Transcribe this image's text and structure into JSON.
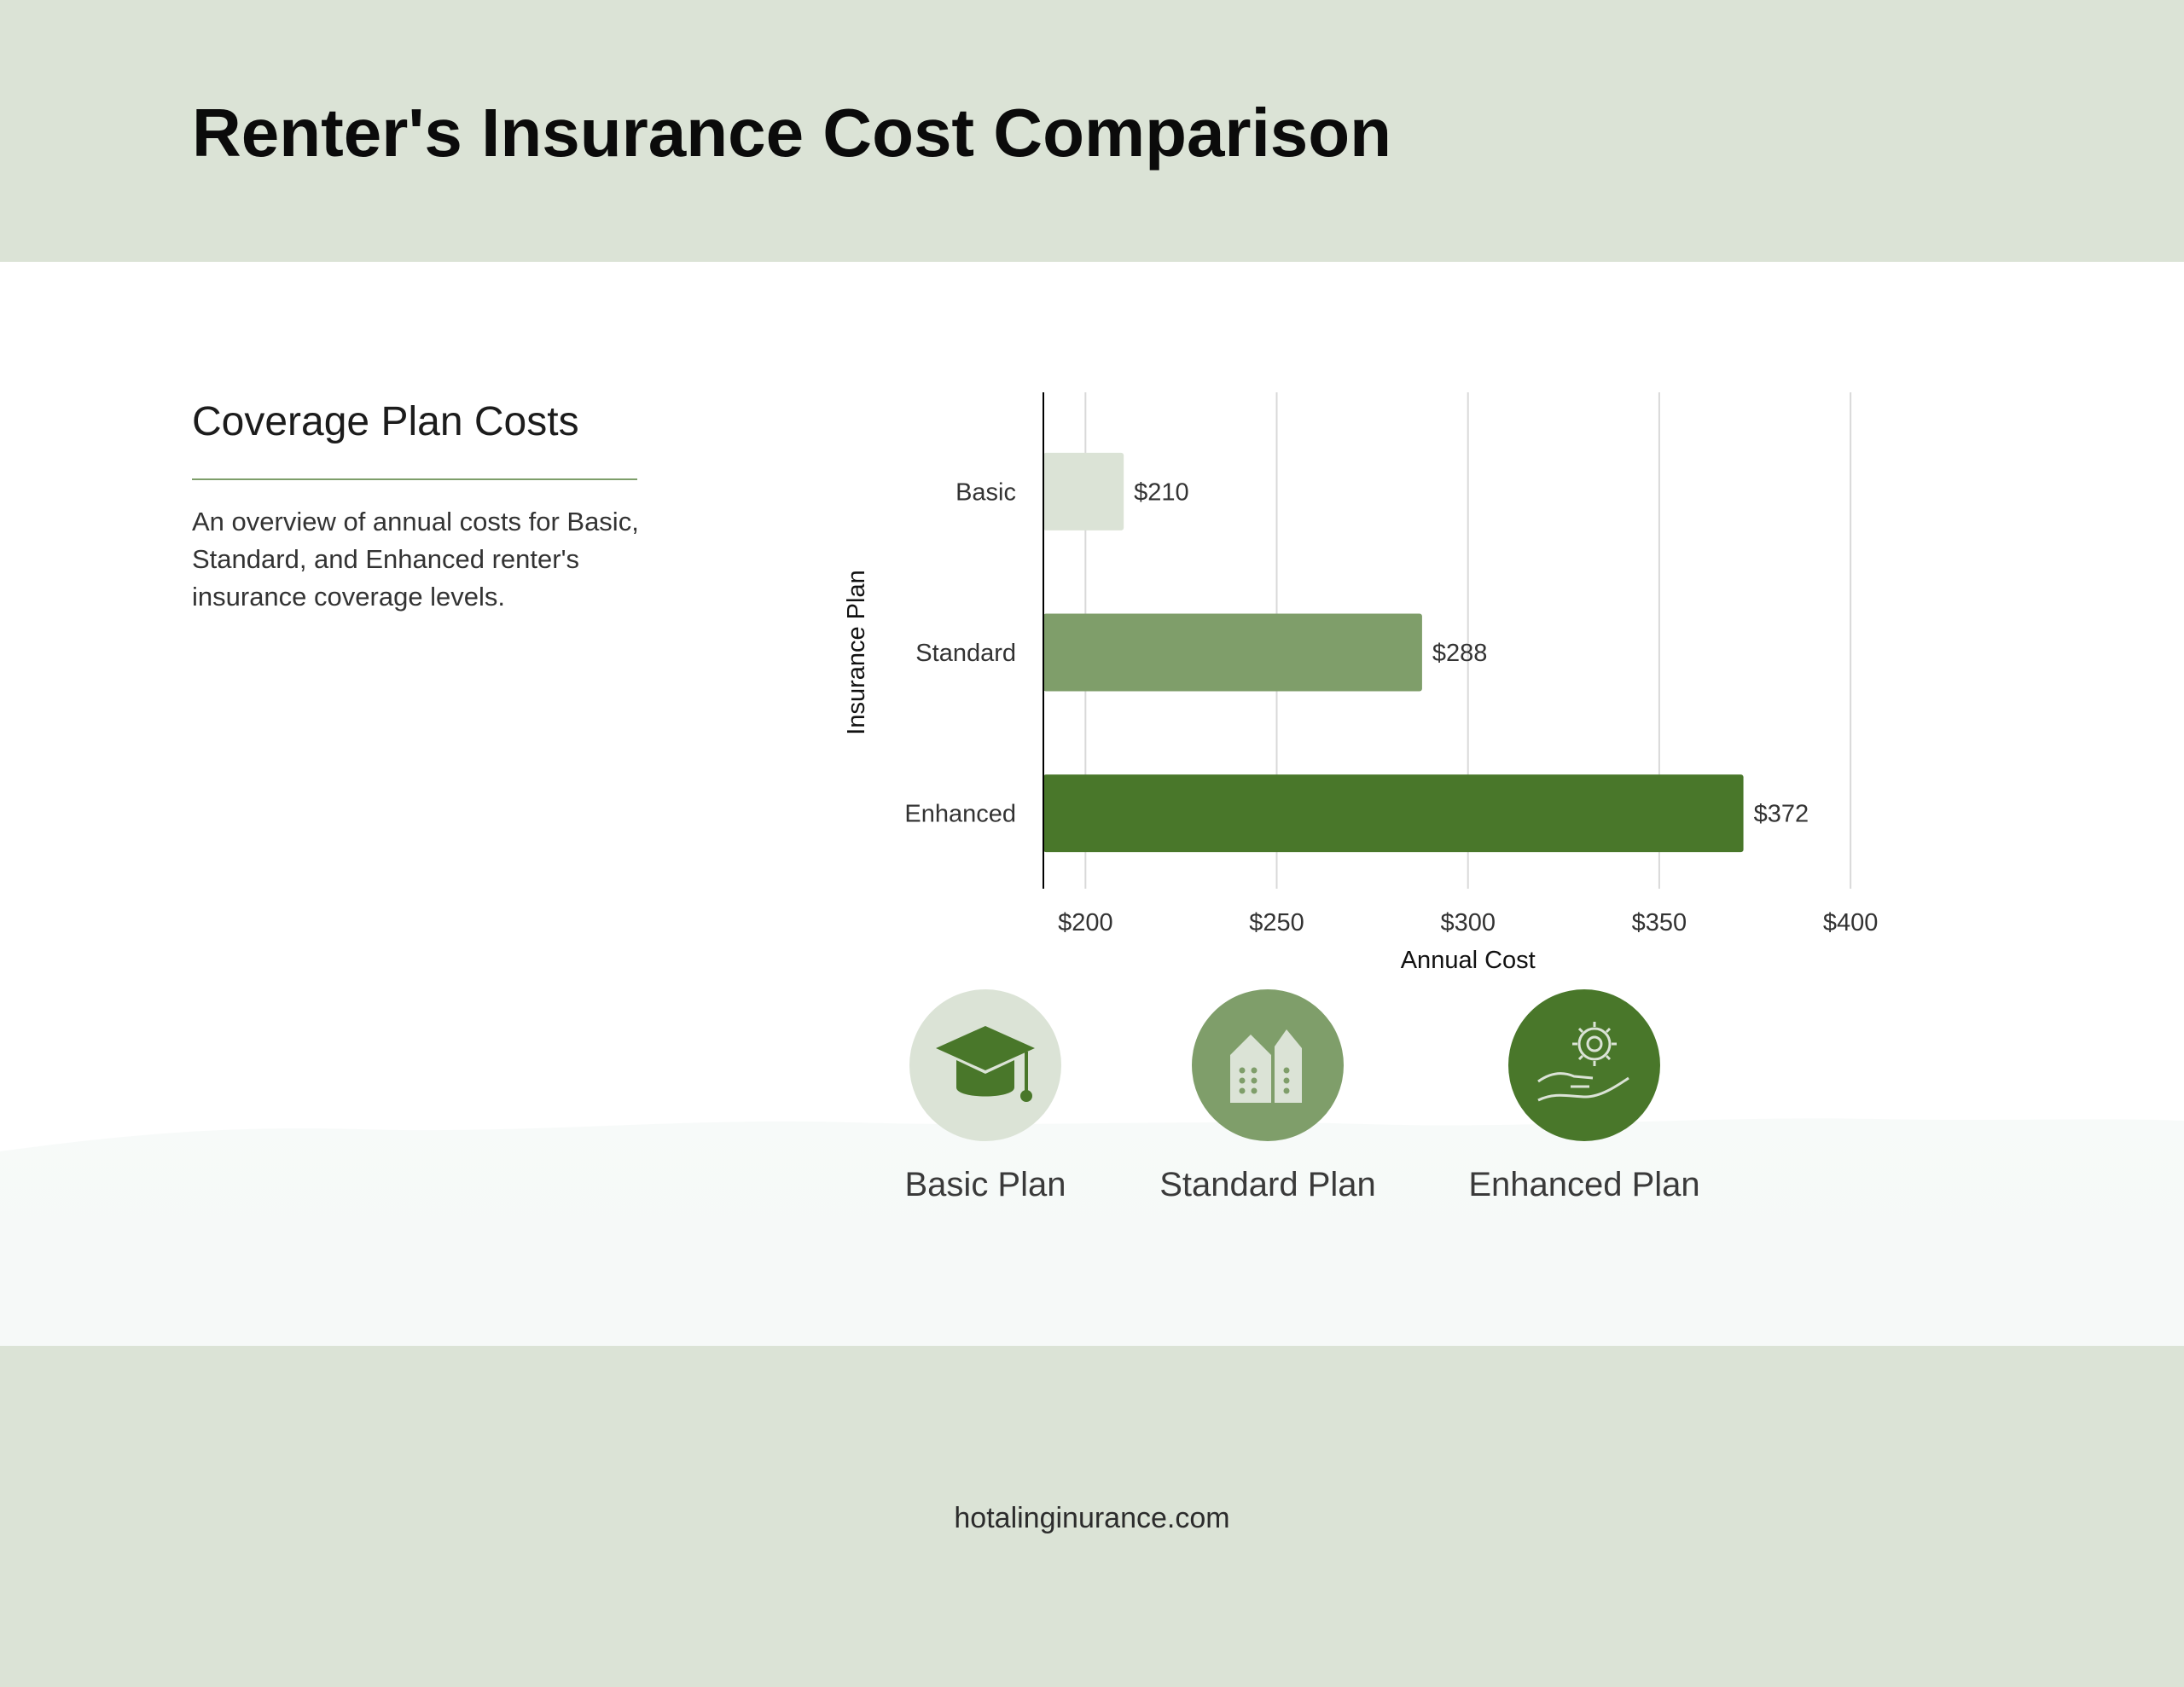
{
  "page": {
    "title": "Renter's Insurance Cost Comparison",
    "section_heading": "Coverage Plan Costs",
    "section_description": "An overview of annual costs for Basic, Standard, and Enhanced renter's insurance coverage levels.",
    "footer_url": "hotalinginurance.com"
  },
  "colors": {
    "band": "#dbe3d6",
    "basic": "#dbe3d6",
    "standard": "#7f9e6a",
    "enhanced": "#49772a",
    "grid": "#d9d9d9",
    "axis": "#000000"
  },
  "chart_data": {
    "type": "bar",
    "orientation": "horizontal",
    "categories": [
      "Basic",
      "Standard",
      "Enhanced"
    ],
    "values": [
      210,
      288,
      372
    ],
    "data_labels": [
      "$210",
      "$288",
      "$372"
    ],
    "xlabel": "Annual Cost",
    "ylabel": "Insurance Plan",
    "xlim": [
      189,
      400
    ],
    "xticks": [
      200,
      250,
      300,
      350,
      400
    ],
    "xtick_labels": [
      "$200",
      "$250",
      "$300",
      "$350",
      "$400"
    ],
    "grid": "vertical",
    "legend": "none"
  },
  "plans": [
    {
      "label": "Basic Plan",
      "icon": "graduation-cap-icon",
      "circle_color": "#dbe3d6",
      "icon_color": "#49772a"
    },
    {
      "label": "Standard Plan",
      "icon": "buildings-icon",
      "circle_color": "#7f9e6a",
      "icon_color": "#dbe3d6"
    },
    {
      "label": "Enhanced Plan",
      "icon": "hand-gear-icon",
      "circle_color": "#49772a",
      "icon_color": "#dbe3d6"
    }
  ]
}
